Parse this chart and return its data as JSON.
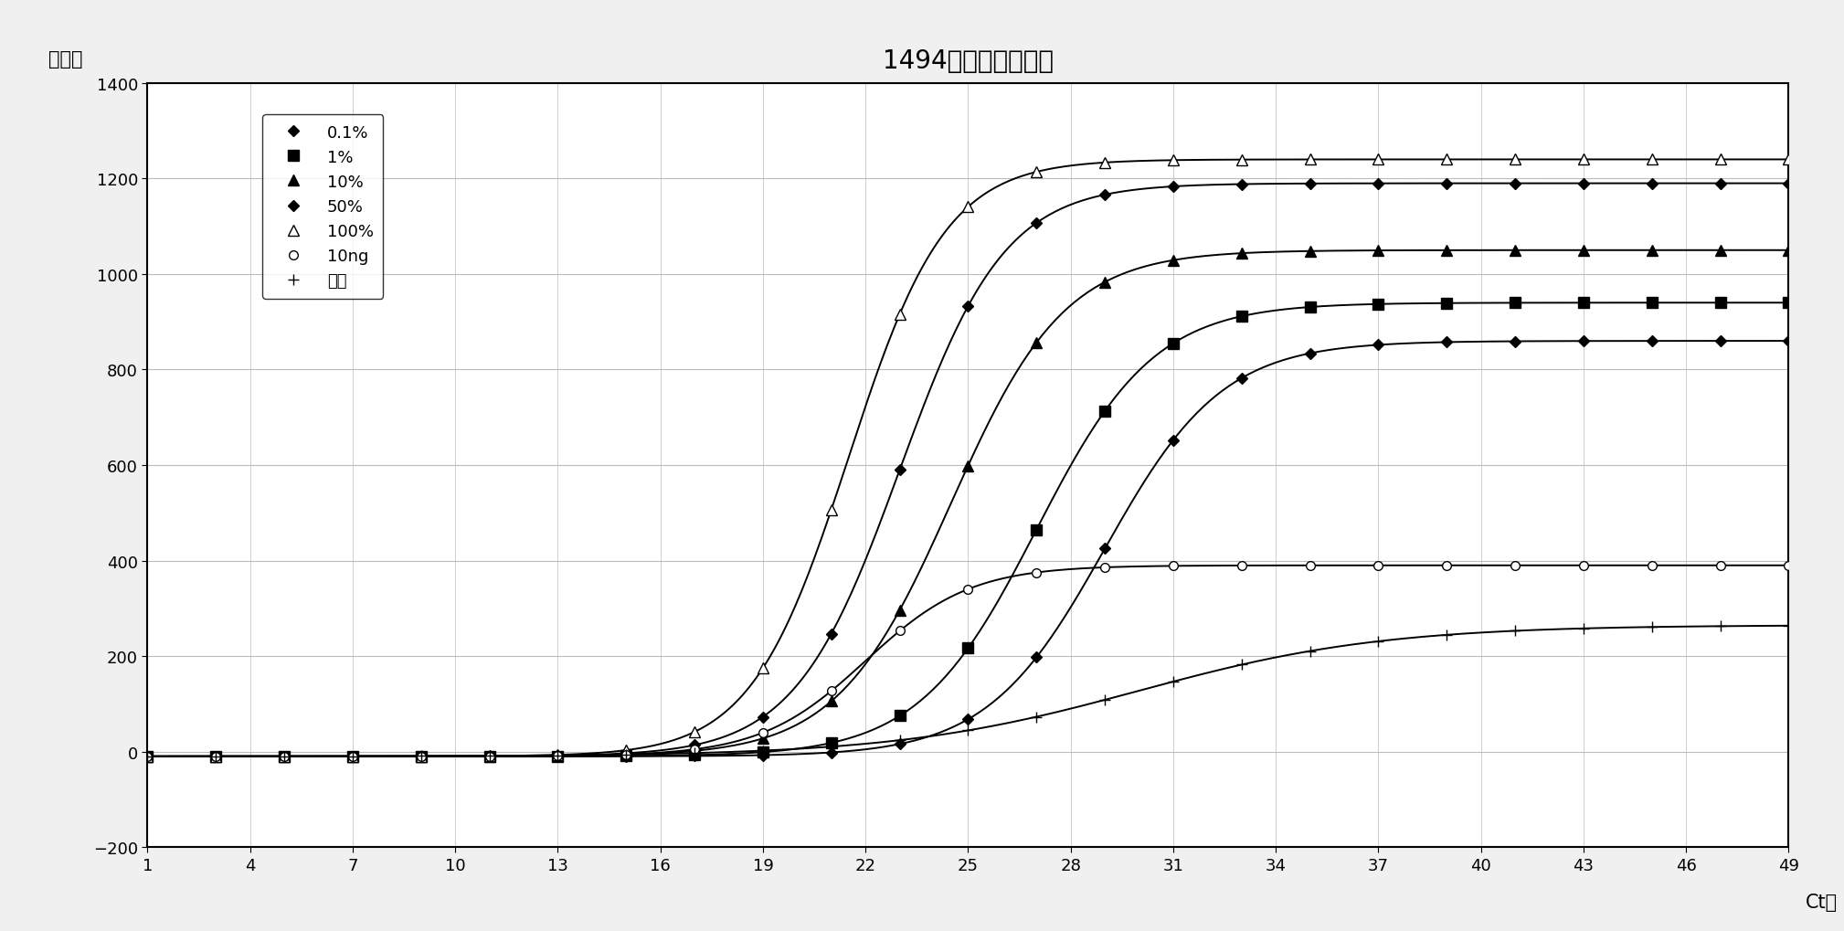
{
  "title": "1494突变比例对照图",
  "xlabel": "Ct值",
  "ylabel": "荧光值",
  "xlim": [
    1,
    49
  ],
  "ylim": [
    -200,
    1400
  ],
  "xticks": [
    1,
    4,
    7,
    10,
    13,
    16,
    19,
    22,
    25,
    28,
    31,
    34,
    37,
    40,
    43,
    46,
    49
  ],
  "yticks": [
    -200,
    0,
    200,
    400,
    600,
    800,
    1000,
    1200,
    1400
  ],
  "series": [
    {
      "label": "0.1%",
      "marker": "D",
      "plateau": 860,
      "midpoint": 29.0,
      "steepness": 0.58,
      "baseline": -10,
      "hollow": false
    },
    {
      "label": "1%",
      "marker": "s",
      "plateau": 940,
      "midpoint": 27.0,
      "steepness": 0.58,
      "baseline": -10,
      "hollow": false
    },
    {
      "label": "10%",
      "marker": "^",
      "plateau": 1050,
      "midpoint": 24.5,
      "steepness": 0.6,
      "baseline": -10,
      "hollow": false
    },
    {
      "label": "50%",
      "marker": "D",
      "plateau": 1190,
      "midpoint": 23.0,
      "steepness": 0.65,
      "baseline": -10,
      "hollow": false
    },
    {
      "label": "100%",
      "marker": "^",
      "plateau": 1240,
      "midpoint": 21.5,
      "steepness": 0.7,
      "baseline": -10,
      "hollow": true
    },
    {
      "label": "10ng",
      "marker": "o",
      "plateau": 390,
      "midpoint": 22.0,
      "steepness": 0.65,
      "baseline": -10,
      "hollow": true
    },
    {
      "label": "内标",
      "marker": "+",
      "plateau": 265,
      "midpoint": 30.0,
      "steepness": 0.28,
      "baseline": -10,
      "hollow": false
    }
  ],
  "background_color": "#f0f0f0",
  "plot_background": "#ffffff",
  "title_fontsize": 20,
  "label_fontsize": 15,
  "tick_fontsize": 13,
  "legend_fontsize": 13
}
